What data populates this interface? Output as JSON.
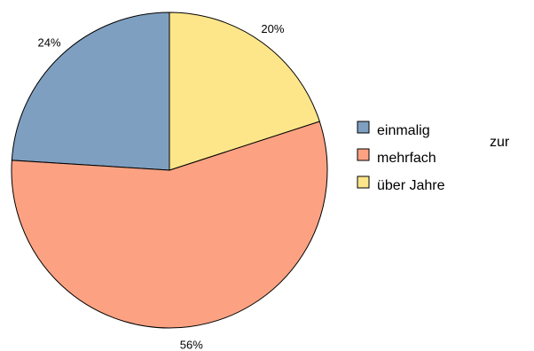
{
  "chart_data": {
    "type": "pie",
    "categories": [
      "einmalig",
      "mehrfach",
      "über Jahre"
    ],
    "values": [
      24,
      56,
      20
    ],
    "value_labels": [
      "24%",
      "56%",
      "20%"
    ],
    "start": "top",
    "direction": "counter-clockwise",
    "colors": [
      "#7f9fc0",
      "#fca283",
      "#fde68a"
    ],
    "legend": {
      "placement": "right",
      "entries": [
        "einmalig",
        "mehrfach",
        "über Jahre"
      ]
    }
  },
  "extra_text": "zur"
}
